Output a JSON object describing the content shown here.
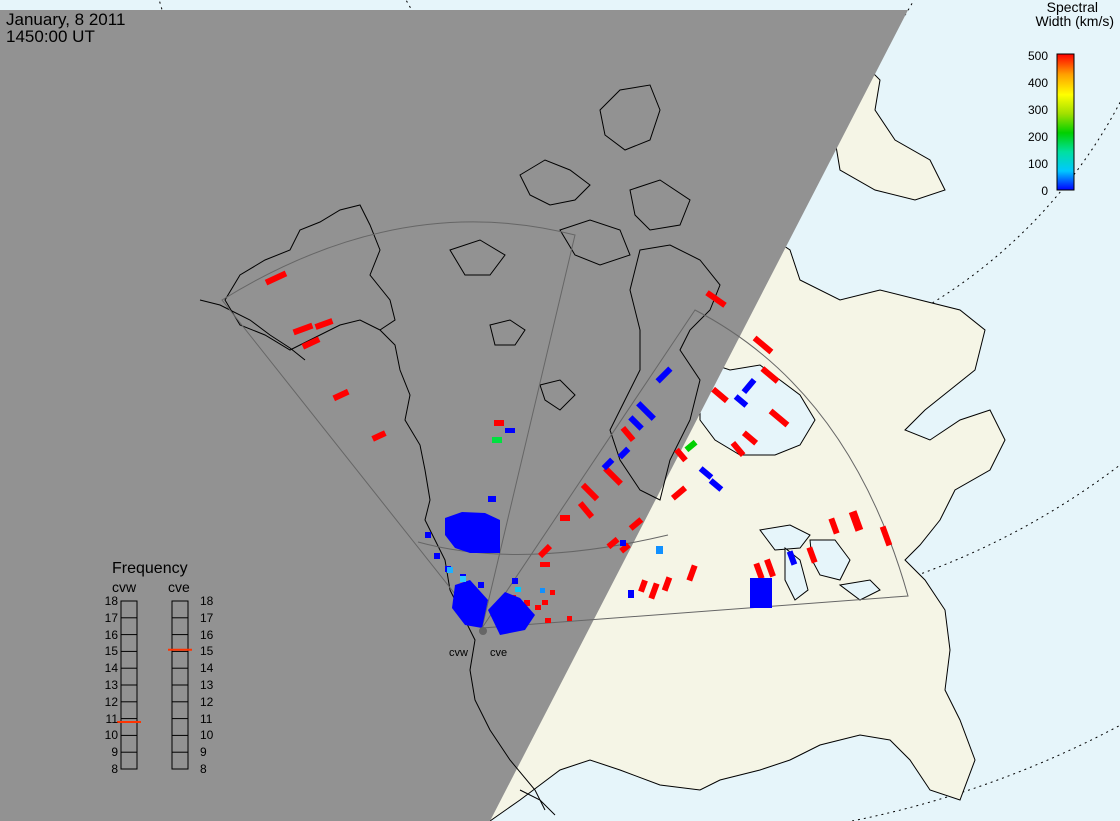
{
  "title": {
    "date": "January, 8 2011",
    "time": "1450:00 UT"
  },
  "colors": {
    "night_shade": "#929292",
    "day_land": "#f5f5e6",
    "day_ocean": "#e6f5fa",
    "fov_outline": "#666666",
    "coast": "#000000",
    "high_width": "#ff0000",
    "low_width": "#0000ff"
  },
  "legend": {
    "title_line1": "Spectral",
    "title_line2": "Width (km/s)",
    "ticks": [
      "500",
      "400",
      "300",
      "200",
      "100",
      "0"
    ],
    "range": [
      0,
      500
    ],
    "scale_colors": [
      "#0000ff",
      "#00c8ff",
      "#00e0a0",
      "#00d000",
      "#a0e000",
      "#ffff00",
      "#ffa000",
      "#ff0000"
    ]
  },
  "frequency": {
    "title": "Frequency",
    "unit_scale": [
      8,
      9,
      10,
      11,
      12,
      13,
      14,
      15,
      16,
      17,
      18
    ],
    "radars": [
      {
        "name": "cvw",
        "value": 10.8
      },
      {
        "name": "cve",
        "value": 15.1
      }
    ]
  },
  "radar_sites": [
    {
      "name": "cvw"
    },
    {
      "name": "cve"
    }
  ]
}
